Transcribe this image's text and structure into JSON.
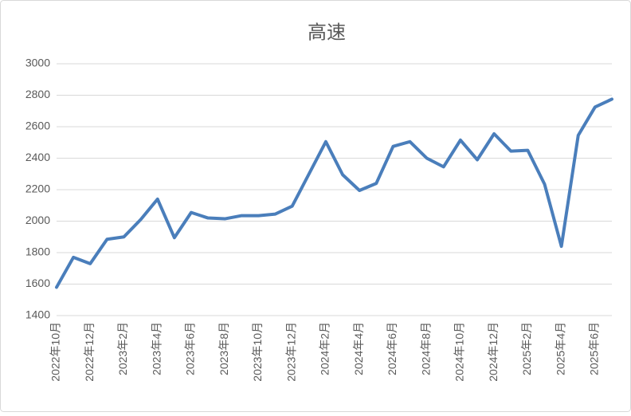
{
  "chart_data": {
    "type": "line",
    "title": "高速",
    "categories": [
      "2022年10月",
      null,
      "2022年12月",
      null,
      "2023年2月",
      null,
      "2023年4月",
      null,
      "2023年6月",
      null,
      "2023年8月",
      null,
      "2023年10月",
      null,
      "2023年12月",
      null,
      "2024年2月",
      null,
      "2024年4月",
      null,
      "2024年6月",
      null,
      "2024年8月",
      null,
      "2024年10月",
      null,
      "2024年12月",
      null,
      "2025年2月",
      null,
      "2025年4月",
      null,
      "2025年6月",
      null
    ],
    "series": [
      {
        "name": "高速",
        "color": "#4a7ebb",
        "values": [
          1580,
          1770,
          1730,
          1885,
          1900,
          2010,
          2140,
          1895,
          2055,
          2020,
          2015,
          2035,
          2035,
          2045,
          2095,
          2300,
          2505,
          2295,
          2195,
          2240,
          2475,
          2505,
          2400,
          2345,
          2515,
          2390,
          2555,
          2445,
          2450,
          2235,
          1840,
          2545,
          2725,
          2775
        ]
      }
    ],
    "ylim": [
      1400,
      3000
    ],
    "yticks": [
      1400,
      1600,
      1800,
      2000,
      2200,
      2400,
      2600,
      2800,
      3000
    ],
    "grid": true
  }
}
